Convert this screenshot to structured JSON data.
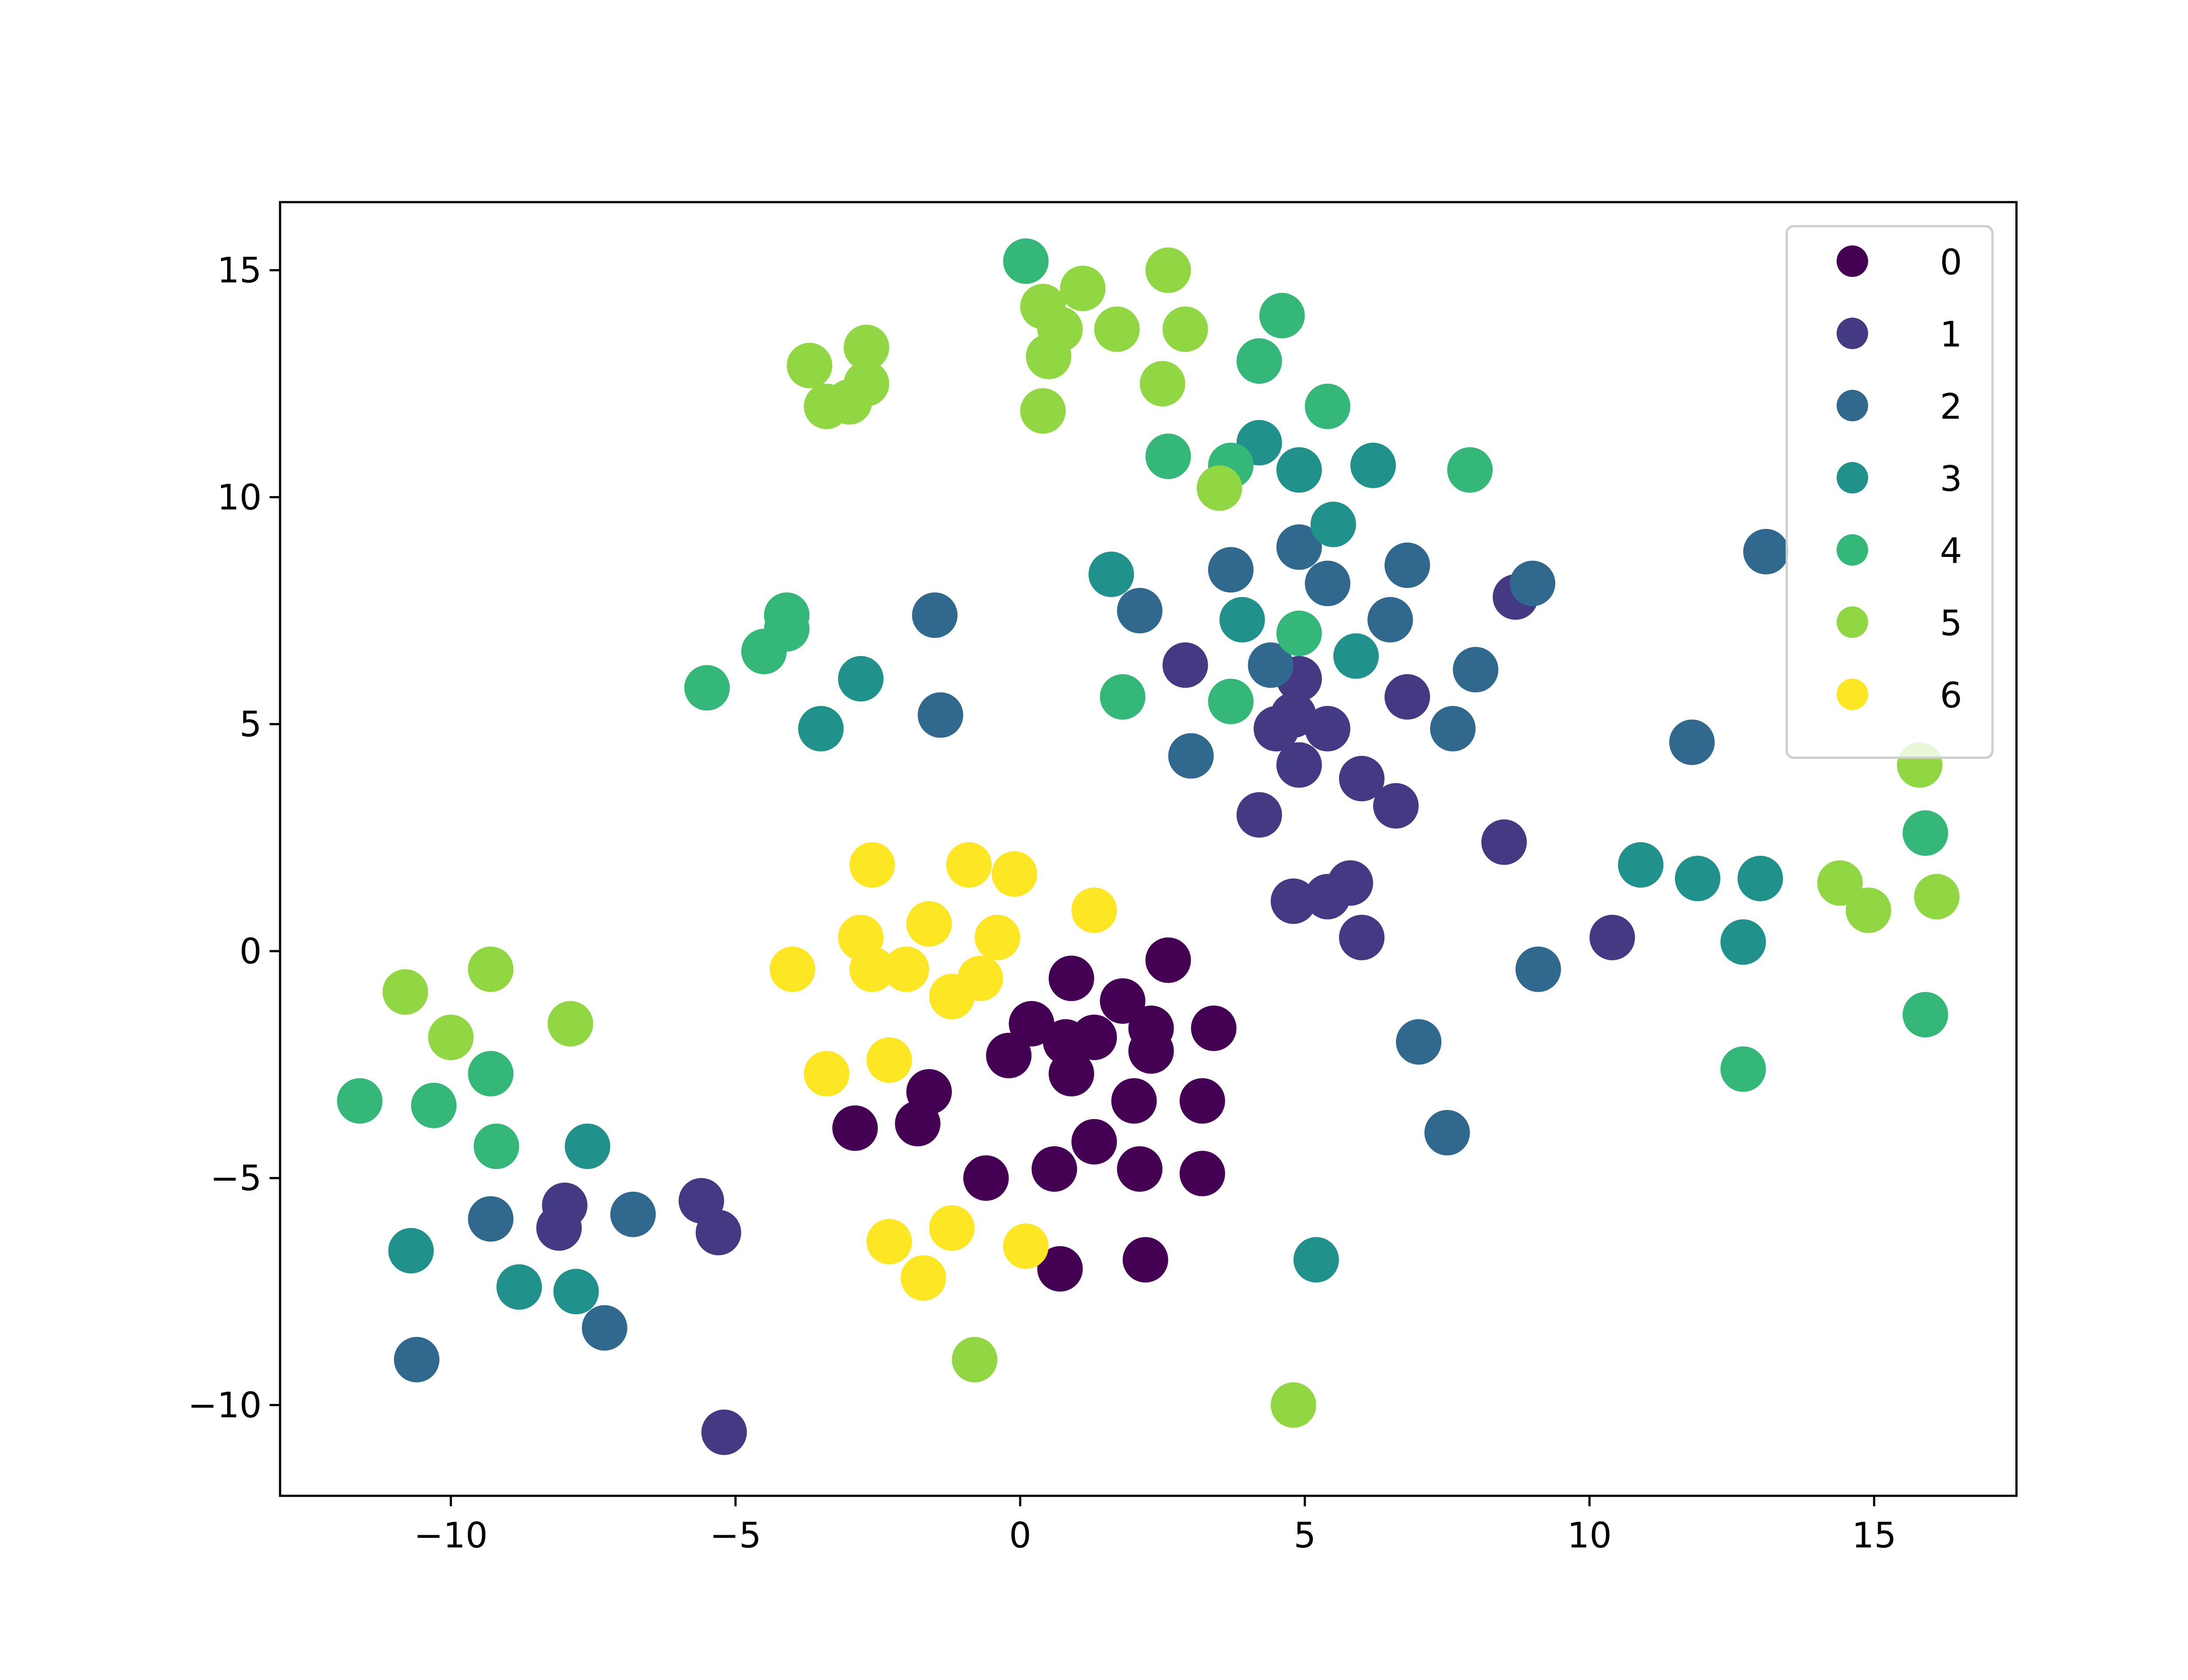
{
  "chart_data": {
    "type": "scatter",
    "title": "",
    "xlabel": "",
    "ylabel": "",
    "xlim": [
      -13,
      17.5
    ],
    "ylim": [
      -12,
      16.5
    ],
    "x_ticks": [
      {
        "value": -10,
        "label": "−10"
      },
      {
        "value": -5,
        "label": "−5"
      },
      {
        "value": 0,
        "label": "0"
      },
      {
        "value": 5,
        "label": "5"
      },
      {
        "value": 10,
        "label": "10"
      },
      {
        "value": 15,
        "label": "15"
      }
    ],
    "y_ticks": [
      {
        "value": -10,
        "label": "−10"
      },
      {
        "value": -5,
        "label": "−5"
      },
      {
        "value": 0,
        "label": "0"
      },
      {
        "value": 5,
        "label": "5"
      },
      {
        "value": 10,
        "label": "10"
      },
      {
        "value": 15,
        "label": "15"
      }
    ],
    "grid": false,
    "legend_position": "top-right",
    "series": [
      {
        "name": "0",
        "color": "#440154",
        "points": [
          [
            0.9,
            -0.6
          ],
          [
            2.6,
            -0.2
          ],
          [
            0.2,
            -1.6
          ],
          [
            0.8,
            -2.0
          ],
          [
            1.3,
            -1.9
          ],
          [
            1.8,
            -1.1
          ],
          [
            2.3,
            -1.7
          ],
          [
            2.3,
            -2.2
          ],
          [
            3.4,
            -1.7
          ],
          [
            -0.2,
            -2.3
          ],
          [
            0.9,
            -2.7
          ],
          [
            2.0,
            -3.3
          ],
          [
            3.2,
            -3.3
          ],
          [
            -1.6,
            -3.1
          ],
          [
            -1.8,
            -3.8
          ],
          [
            -2.9,
            -3.9
          ],
          [
            1.3,
            -4.2
          ],
          [
            0.6,
            -4.8
          ],
          [
            2.1,
            -4.8
          ],
          [
            3.2,
            -4.9
          ],
          [
            -0.6,
            -5.0
          ],
          [
            0.7,
            -7.0
          ],
          [
            2.2,
            -6.8
          ]
        ]
      },
      {
        "name": "1",
        "color": "#443983",
        "points": [
          [
            2.9,
            6.3
          ],
          [
            4.9,
            6.0
          ],
          [
            4.8,
            5.2
          ],
          [
            6.8,
            5.6
          ],
          [
            4.5,
            4.9
          ],
          [
            5.4,
            4.9
          ],
          [
            4.9,
            4.1
          ],
          [
            6.0,
            3.8
          ],
          [
            4.2,
            3.0
          ],
          [
            6.6,
            3.2
          ],
          [
            8.5,
            2.4
          ],
          [
            5.8,
            1.5
          ],
          [
            4.8,
            1.1
          ],
          [
            5.4,
            1.2
          ],
          [
            6.0,
            0.3
          ],
          [
            8.7,
            7.8
          ],
          [
            10.4,
            0.3
          ],
          [
            -8.0,
            -5.6
          ],
          [
            -8.1,
            -6.1
          ],
          [
            -5.6,
            -5.5
          ],
          [
            -5.3,
            -6.2
          ],
          [
            -5.2,
            -10.6
          ]
        ]
      },
      {
        "name": "2",
        "color": "#31688e",
        "points": [
          [
            -1.5,
            7.4
          ],
          [
            -1.4,
            5.2
          ],
          [
            2.1,
            7.5
          ],
          [
            3.7,
            8.4
          ],
          [
            4.9,
            8.9
          ],
          [
            5.4,
            8.1
          ],
          [
            6.8,
            8.5
          ],
          [
            6.5,
            7.3
          ],
          [
            9.0,
            8.1
          ],
          [
            8.0,
            6.2
          ],
          [
            7.6,
            4.9
          ],
          [
            4.4,
            6.3
          ],
          [
            3.0,
            4.3
          ],
          [
            11.8,
            4.6
          ],
          [
            13.1,
            8.8
          ],
          [
            9.1,
            -0.4
          ],
          [
            7.0,
            -2.0
          ],
          [
            7.5,
            -4.0
          ],
          [
            -6.8,
            -5.8
          ],
          [
            -7.3,
            -8.3
          ],
          [
            -9.3,
            -5.9
          ],
          [
            -10.6,
            -9.0
          ]
        ]
      },
      {
        "name": "3",
        "color": "#21918c",
        "points": [
          [
            -2.8,
            6.0
          ],
          [
            -3.5,
            4.9
          ],
          [
            1.6,
            8.3
          ],
          [
            4.2,
            11.2
          ],
          [
            4.9,
            10.6
          ],
          [
            6.2,
            10.7
          ],
          [
            5.5,
            9.4
          ],
          [
            3.9,
            7.3
          ],
          [
            5.9,
            6.5
          ],
          [
            10.9,
            1.9
          ],
          [
            11.9,
            1.6
          ],
          [
            13.0,
            1.6
          ],
          [
            12.7,
            0.2
          ],
          [
            5.2,
            -6.8
          ],
          [
            -7.6,
            -4.3
          ],
          [
            -10.7,
            -6.6
          ],
          [
            -8.8,
            -7.4
          ],
          [
            -7.8,
            -7.5
          ]
        ]
      },
      {
        "name": "4",
        "color": "#35b779",
        "points": [
          [
            0.1,
            15.2
          ],
          [
            4.6,
            14.0
          ],
          [
            4.2,
            13.0
          ],
          [
            5.4,
            12.0
          ],
          [
            2.6,
            10.9
          ],
          [
            3.7,
            10.7
          ],
          [
            7.9,
            10.6
          ],
          [
            4.9,
            7.0
          ],
          [
            1.8,
            5.6
          ],
          [
            3.7,
            5.5
          ],
          [
            -4.1,
            7.4
          ],
          [
            -4.1,
            7.1
          ],
          [
            -4.5,
            6.6
          ],
          [
            -5.5,
            5.8
          ],
          [
            12.7,
            -2.6
          ],
          [
            15.9,
            2.6
          ],
          [
            15.9,
            -1.4
          ],
          [
            -11.6,
            -3.3
          ],
          [
            -10.3,
            -3.4
          ],
          [
            -9.3,
            -2.7
          ],
          [
            -9.2,
            -4.3
          ]
        ]
      },
      {
        "name": "5",
        "color": "#90d743",
        "points": [
          [
            -3.7,
            12.9
          ],
          [
            -3.4,
            12.0
          ],
          [
            -3.0,
            12.1
          ],
          [
            -2.7,
            12.5
          ],
          [
            -2.7,
            13.3
          ],
          [
            0.4,
            14.2
          ],
          [
            1.1,
            14.6
          ],
          [
            0.7,
            13.7
          ],
          [
            0.5,
            13.1
          ],
          [
            1.7,
            13.7
          ],
          [
            2.6,
            15.0
          ],
          [
            2.9,
            13.7
          ],
          [
            2.5,
            12.5
          ],
          [
            0.4,
            11.9
          ],
          [
            3.5,
            10.2
          ],
          [
            15.8,
            4.1
          ],
          [
            14.4,
            1.5
          ],
          [
            14.9,
            0.9
          ],
          [
            16.1,
            1.2
          ],
          [
            -10.8,
            -0.9
          ],
          [
            -9.3,
            -0.4
          ],
          [
            -10.0,
            -1.9
          ],
          [
            -7.9,
            -1.6
          ],
          [
            -0.8,
            -9.0
          ],
          [
            4.8,
            -10.0
          ]
        ]
      },
      {
        "name": "6",
        "color": "#fde725",
        "points": [
          [
            -2.6,
            1.9
          ],
          [
            -0.9,
            1.9
          ],
          [
            -0.1,
            1.7
          ],
          [
            1.3,
            0.9
          ],
          [
            -1.6,
            0.6
          ],
          [
            -2.8,
            0.3
          ],
          [
            -0.4,
            0.3
          ],
          [
            -4.0,
            -0.4
          ],
          [
            -2.6,
            -0.4
          ],
          [
            -2.0,
            -0.4
          ],
          [
            -0.7,
            -0.6
          ],
          [
            -1.2,
            -1.0
          ],
          [
            -3.4,
            -2.7
          ],
          [
            -2.3,
            -2.4
          ],
          [
            -2.3,
            -6.4
          ],
          [
            -1.7,
            -7.2
          ],
          [
            -1.2,
            -6.1
          ],
          [
            0.1,
            -6.5
          ]
        ]
      }
    ]
  }
}
